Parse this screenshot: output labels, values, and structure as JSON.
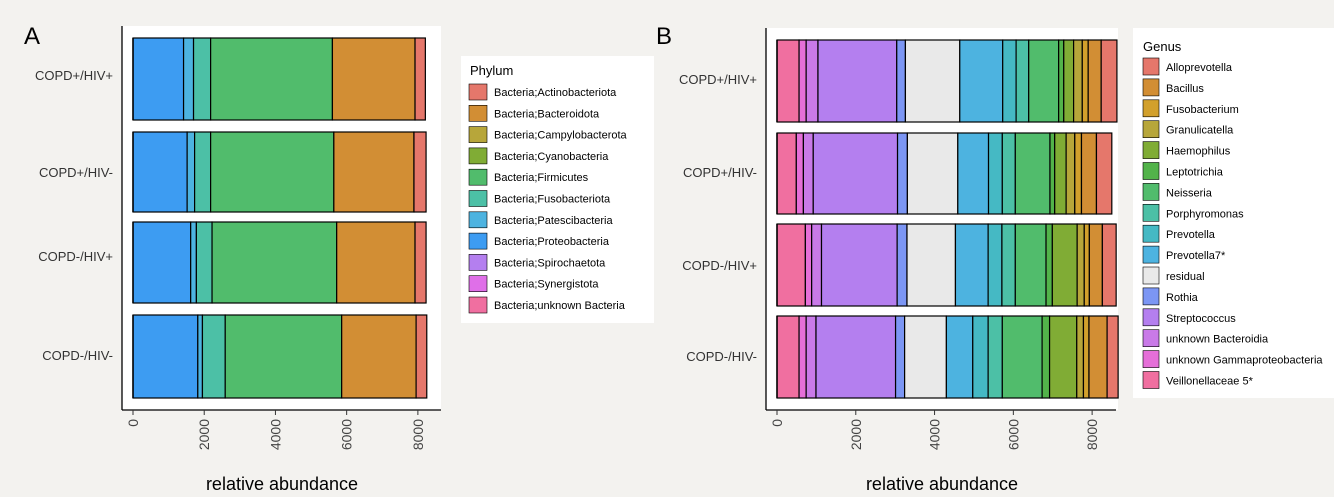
{
  "panels": [
    {
      "letter": "A",
      "xlabel": "relative abundance",
      "legend_title": "Phylum"
    },
    {
      "letter": "B",
      "xlabel": "relative abundance",
      "legend_title": "Genus"
    }
  ],
  "chart_data": [
    {
      "type": "bar",
      "orientation": "horizontal",
      "stacked": true,
      "panel": "A",
      "categories": [
        "COPD+/HIV+",
        "COPD+/HIV-",
        "COPD-/HIV+",
        "COPD-/HIV-"
      ],
      "xlabel": "relative abundance",
      "ylabel": "",
      "xlim": [
        0,
        8200
      ],
      "xticks": [
        0,
        2000,
        4000,
        6000,
        8000
      ],
      "xtick_labels": [
        "0",
        "2000",
        "4000",
        "6000",
        "8000"
      ],
      "legend_title": "Phylum",
      "legend_position": "right",
      "grid": false,
      "series": [
        {
          "name": "Bacteria;unknown Bacteria",
          "color": "#f06fa0",
          "values": [
            0,
            0,
            0,
            0
          ]
        },
        {
          "name": "Bacteria;Synergistota",
          "color": "#df6fe8",
          "values": [
            0,
            0,
            0,
            0
          ]
        },
        {
          "name": "Bacteria;Spirochaetota",
          "color": "#b47fef",
          "values": [
            0,
            0,
            0,
            0
          ]
        },
        {
          "name": "Bacteria;Proteobacteria",
          "color": "#3d9cf2",
          "values": [
            1420,
            1520,
            1620,
            1820
          ]
        },
        {
          "name": "Bacteria;Patescibacteria",
          "color": "#4db3e0",
          "values": [
            280,
            210,
            160,
            130
          ]
        },
        {
          "name": "Bacteria;Fusobacteriota",
          "color": "#4cc0a6",
          "values": [
            480,
            450,
            440,
            640
          ]
        },
        {
          "name": "Bacteria;Firmicutes",
          "color": "#51bc6c",
          "values": [
            3420,
            3460,
            3500,
            3270
          ]
        },
        {
          "name": "Bacteria;Cyanobacteria",
          "color": "#80ac35",
          "values": [
            0,
            0,
            0,
            0
          ]
        },
        {
          "name": "Bacteria;Campylobacterota",
          "color": "#b7a63a",
          "values": [
            0,
            0,
            0,
            0
          ]
        },
        {
          "name": "Bacteria;Bacteroidota",
          "color": "#d28e34",
          "values": [
            2320,
            2250,
            2200,
            2090
          ]
        },
        {
          "name": "Bacteria;Actinobacteriota",
          "color": "#e5776b",
          "values": [
            290,
            340,
            310,
            300
          ]
        }
      ],
      "legend_entries": [
        "Bacteria;Actinobacteriota",
        "Bacteria;Bacteroidota",
        "Bacteria;Campylobacterota",
        "Bacteria;Cyanobacteria",
        "Bacteria;Firmicutes",
        "Bacteria;Fusobacteriota",
        "Bacteria;Patescibacteria",
        "Bacteria;Proteobacteria",
        "Bacteria;Spirochaetota",
        "Bacteria;Synergistota",
        "Bacteria;unknown Bacteria"
      ]
    },
    {
      "type": "bar",
      "orientation": "horizontal",
      "stacked": true,
      "panel": "B",
      "categories": [
        "COPD+/HIV+",
        "COPD+/HIV-",
        "COPD-/HIV+",
        "COPD-/HIV-"
      ],
      "xlabel": "relative abundance",
      "ylabel": "",
      "xlim": [
        0,
        8200
      ],
      "xticks": [
        0,
        2000,
        4000,
        6000,
        8000
      ],
      "xtick_labels": [
        "0",
        "2000",
        "4000",
        "6000",
        "8000"
      ],
      "legend_title": "Genus",
      "legend_position": "right",
      "grid": false,
      "series": [
        {
          "name": "Veillonellaceae 5*",
          "color": "#f06fa0",
          "values": [
            560,
            490,
            720,
            560
          ]
        },
        {
          "name": "unknown Gammaproteobacteria",
          "color": "#e56fd8",
          "values": [
            180,
            180,
            160,
            180
          ]
        },
        {
          "name": "unknown Bacteroidia",
          "color": "#c97ae8",
          "values": [
            300,
            250,
            250,
            250
          ]
        },
        {
          "name": "Streptococcus",
          "color": "#b47fef",
          "values": [
            2000,
            2140,
            1920,
            2020
          ]
        },
        {
          "name": "Rothia",
          "color": "#7c96f4",
          "values": [
            220,
            250,
            250,
            230
          ]
        },
        {
          "name": "residual",
          "color": "#e9e9e9",
          "values": [
            1380,
            1280,
            1230,
            1060
          ]
        },
        {
          "name": "Prevotella7*",
          "color": "#4db3e0",
          "values": [
            1090,
            780,
            830,
            670
          ]
        },
        {
          "name": "Prevotella",
          "color": "#45b9c4",
          "values": [
            340,
            350,
            350,
            390
          ]
        },
        {
          "name": "Porphyromonas",
          "color": "#4cc0a6",
          "values": [
            320,
            330,
            340,
            360
          ]
        },
        {
          "name": "Neisseria",
          "color": "#51bc6c",
          "values": [
            760,
            880,
            780,
            1010
          ]
        },
        {
          "name": "Leptotrichia",
          "color": "#52b34a",
          "values": [
            130,
            120,
            160,
            190
          ]
        },
        {
          "name": "Haemophilus",
          "color": "#80ac35",
          "values": [
            250,
            290,
            630,
            690
          ]
        },
        {
          "name": "Granulicatella",
          "color": "#b7a63a",
          "values": [
            220,
            220,
            180,
            170
          ]
        },
        {
          "name": "Fusobacterium",
          "color": "#d2a02c",
          "values": [
            150,
            170,
            130,
            140
          ]
        },
        {
          "name": "Bacillus",
          "color": "#d28e34",
          "values": [
            330,
            380,
            330,
            460
          ]
        },
        {
          "name": "Alloprevotella",
          "color": "#e5776b",
          "values": [
            400,
            390,
            350,
            280
          ]
        }
      ],
      "legend_entries": [
        "Alloprevotella",
        "Bacillus",
        "Fusobacterium",
        "Granulicatella",
        "Haemophilus",
        "Leptotrichia",
        "Neisseria",
        "Porphyromonas",
        "Prevotella",
        "Prevotella7*",
        "residual",
        "Rothia",
        "Streptococcus",
        "unknown  Bacteroidia",
        "unknown  Gammaproteobacteria",
        "Veillonellaceae 5*"
      ]
    }
  ]
}
